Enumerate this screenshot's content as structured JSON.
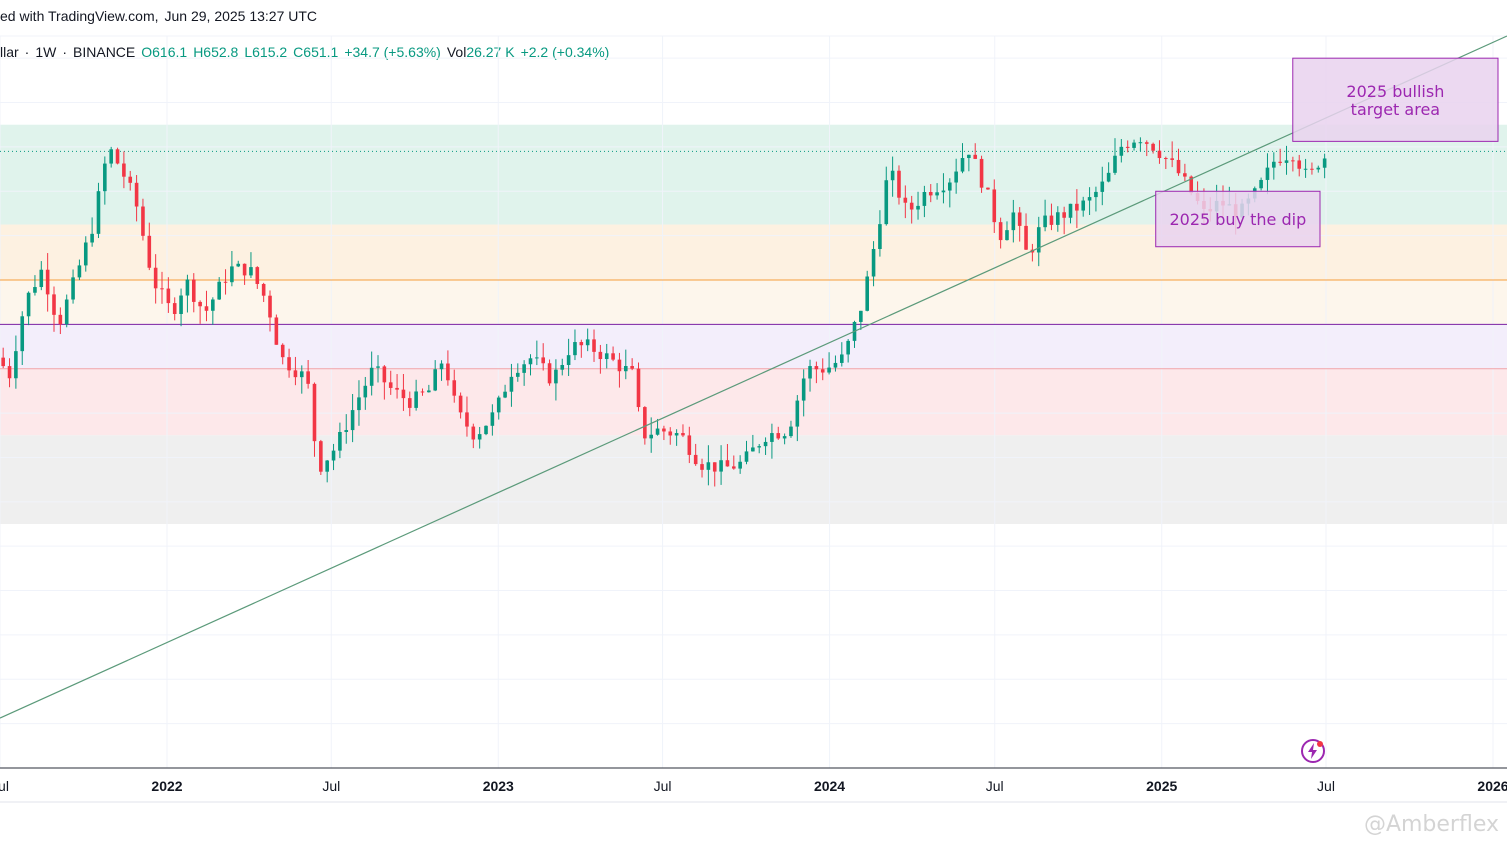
{
  "header": {
    "title": "ed with TradingView.com,",
    "timestamp": "Jun 29, 2025 13:27 UTC"
  },
  "symbol_bar": {
    "symbol": "llar",
    "separator": "·",
    "interval": "1W",
    "exchange": "BINANCE",
    "open": "O616.1",
    "high": "H652.8",
    "low": "L615.2",
    "close": "C651.1",
    "change": "+34.7 (+5.63%)",
    "vol_label": "Vol",
    "vol_value": "26.27 K",
    "vol_change": "+2.2 (+0.34%)"
  },
  "colors": {
    "up": "#089981",
    "down": "#f23645",
    "trendline": "#5b9a7a",
    "annotation": "#9c27b0",
    "annotation_fill": "#e9d2ee"
  },
  "watermark": "@Amberflex",
  "chart_data": {
    "type": "candlestick",
    "title": "",
    "xlabel": "",
    "ylabel": "",
    "x_ticks": [
      {
        "label": "Jul",
        "date": "2021-07-01",
        "bold": false
      },
      {
        "label": "2022",
        "date": "2022-01-01",
        "bold": true
      },
      {
        "label": "Jul",
        "date": "2022-07-01",
        "bold": false
      },
      {
        "label": "2023",
        "date": "2023-01-01",
        "bold": true
      },
      {
        "label": "Jul",
        "date": "2023-07-01",
        "bold": false
      },
      {
        "label": "2024",
        "date": "2024-01-01",
        "bold": true
      },
      {
        "label": "Jul",
        "date": "2024-07-01",
        "bold": false
      },
      {
        "label": "2025",
        "date": "2025-01-01",
        "bold": true
      },
      {
        "label": "Jul",
        "date": "2025-07-01",
        "bold": false
      },
      {
        "label": "2026",
        "date": "2026-01-01",
        "bold": true
      }
    ],
    "x_range": [
      "2021-07-01",
      "2026-01-01"
    ],
    "y_range": [
      100,
      760
    ],
    "grid": true,
    "zones": [
      {
        "from": 590,
        "to": 680,
        "color": "#e0f3ec"
      },
      {
        "from": 540,
        "to": 590,
        "color": "#fdf1e1"
      },
      {
        "from": 500,
        "to": 540,
        "color": "#fdf6ec"
      },
      {
        "from": 460,
        "to": 500,
        "color": "#f3eefb"
      },
      {
        "from": 400,
        "to": 460,
        "color": "#fde8ea"
      },
      {
        "from": 320,
        "to": 400,
        "color": "#efefef"
      }
    ],
    "levels": [
      {
        "value": 656,
        "color": "#089981",
        "style": "dotted"
      },
      {
        "value": 540,
        "color": "#f59d3c",
        "style": "solid"
      },
      {
        "value": 500,
        "color": "#7b1fa2",
        "style": "solid"
      },
      {
        "value": 460,
        "color": "#f3a3a8",
        "style": "solid"
      }
    ],
    "trendline": {
      "from": {
        "date": "2021-07-01",
        "price": 145
      },
      "to": {
        "date": "2026-01-01",
        "price": 760
      }
    },
    "annotations": [
      {
        "text": [
          "2025 bullish",
          "target area"
        ],
        "from": "2025-06-01",
        "to": "2026-01-01",
        "top": 740,
        "bottom": 665
      },
      {
        "text": [
          "2025 buy the dip"
        ],
        "from": "2025-01-01",
        "to": "2025-07-01",
        "top": 620,
        "bottom": 570
      }
    ],
    "series": {
      "name": "",
      "anchors": [
        [
          "2021-07-01",
          470
        ],
        [
          "2021-07-15",
          455
        ],
        [
          "2021-08-01",
          520
        ],
        [
          "2021-08-20",
          550
        ],
        [
          "2021-09-07",
          500
        ],
        [
          "2021-09-25",
          540
        ],
        [
          "2021-10-15",
          590
        ],
        [
          "2021-11-01",
          660
        ],
        [
          "2021-11-15",
          640
        ],
        [
          "2021-12-01",
          610
        ],
        [
          "2021-12-20",
          540
        ],
        [
          "2022-01-10",
          510
        ],
        [
          "2022-01-25",
          540
        ],
        [
          "2022-02-15",
          510
        ],
        [
          "2022-03-15",
          550
        ],
        [
          "2022-04-05",
          550
        ],
        [
          "2022-04-25",
          520
        ],
        [
          "2022-05-10",
          470
        ],
        [
          "2022-05-25",
          460
        ],
        [
          "2022-06-08",
          450
        ],
        [
          "2022-06-20",
          370
        ],
        [
          "2022-07-10",
          390
        ],
        [
          "2022-08-01",
          430
        ],
        [
          "2022-08-20",
          460
        ],
        [
          "2022-09-10",
          440
        ],
        [
          "2022-10-01",
          430
        ],
        [
          "2022-10-20",
          440
        ],
        [
          "2022-11-05",
          470
        ],
        [
          "2022-11-20",
          420
        ],
        [
          "2022-12-10",
          400
        ],
        [
          "2023-01-01",
          420
        ],
        [
          "2023-01-20",
          460
        ],
        [
          "2023-02-10",
          470
        ],
        [
          "2023-03-05",
          450
        ],
        [
          "2023-03-25",
          480
        ],
        [
          "2023-04-15",
          480
        ],
        [
          "2023-05-05",
          470
        ],
        [
          "2023-06-01",
          455
        ],
        [
          "2023-06-12",
          400
        ],
        [
          "2023-07-01",
          405
        ],
        [
          "2023-07-25",
          400
        ],
        [
          "2023-08-15",
          375
        ],
        [
          "2023-09-10",
          370
        ],
        [
          "2023-10-01",
          375
        ],
        [
          "2023-10-25",
          400
        ],
        [
          "2023-11-20",
          405
        ],
        [
          "2023-12-10",
          460
        ],
        [
          "2024-01-01",
          460
        ],
        [
          "2024-01-20",
          470
        ],
        [
          "2024-02-10",
          520
        ],
        [
          "2024-02-25",
          580
        ],
        [
          "2024-03-10",
          640
        ],
        [
          "2024-03-30",
          600
        ],
        [
          "2024-04-20",
          620
        ],
        [
          "2024-05-15",
          630
        ],
        [
          "2024-06-05",
          660
        ],
        [
          "2024-06-25",
          620
        ],
        [
          "2024-07-10",
          580
        ],
        [
          "2024-07-25",
          600
        ],
        [
          "2024-08-10",
          560
        ],
        [
          "2024-08-25",
          590
        ],
        [
          "2024-09-20",
          600
        ],
        [
          "2024-10-15",
          610
        ],
        [
          "2024-11-05",
          630
        ],
        [
          "2024-11-20",
          660
        ],
        [
          "2024-12-10",
          670
        ],
        [
          "2024-12-28",
          660
        ],
        [
          "2025-01-20",
          640
        ],
        [
          "2025-02-05",
          620
        ],
        [
          "2025-02-20",
          600
        ],
        [
          "2025-03-10",
          610
        ],
        [
          "2025-04-01",
          600
        ],
        [
          "2025-04-20",
          620
        ],
        [
          "2025-05-10",
          650
        ],
        [
          "2025-05-30",
          655
        ],
        [
          "2025-06-15",
          630
        ],
        [
          "2025-06-29",
          651
        ]
      ]
    }
  }
}
